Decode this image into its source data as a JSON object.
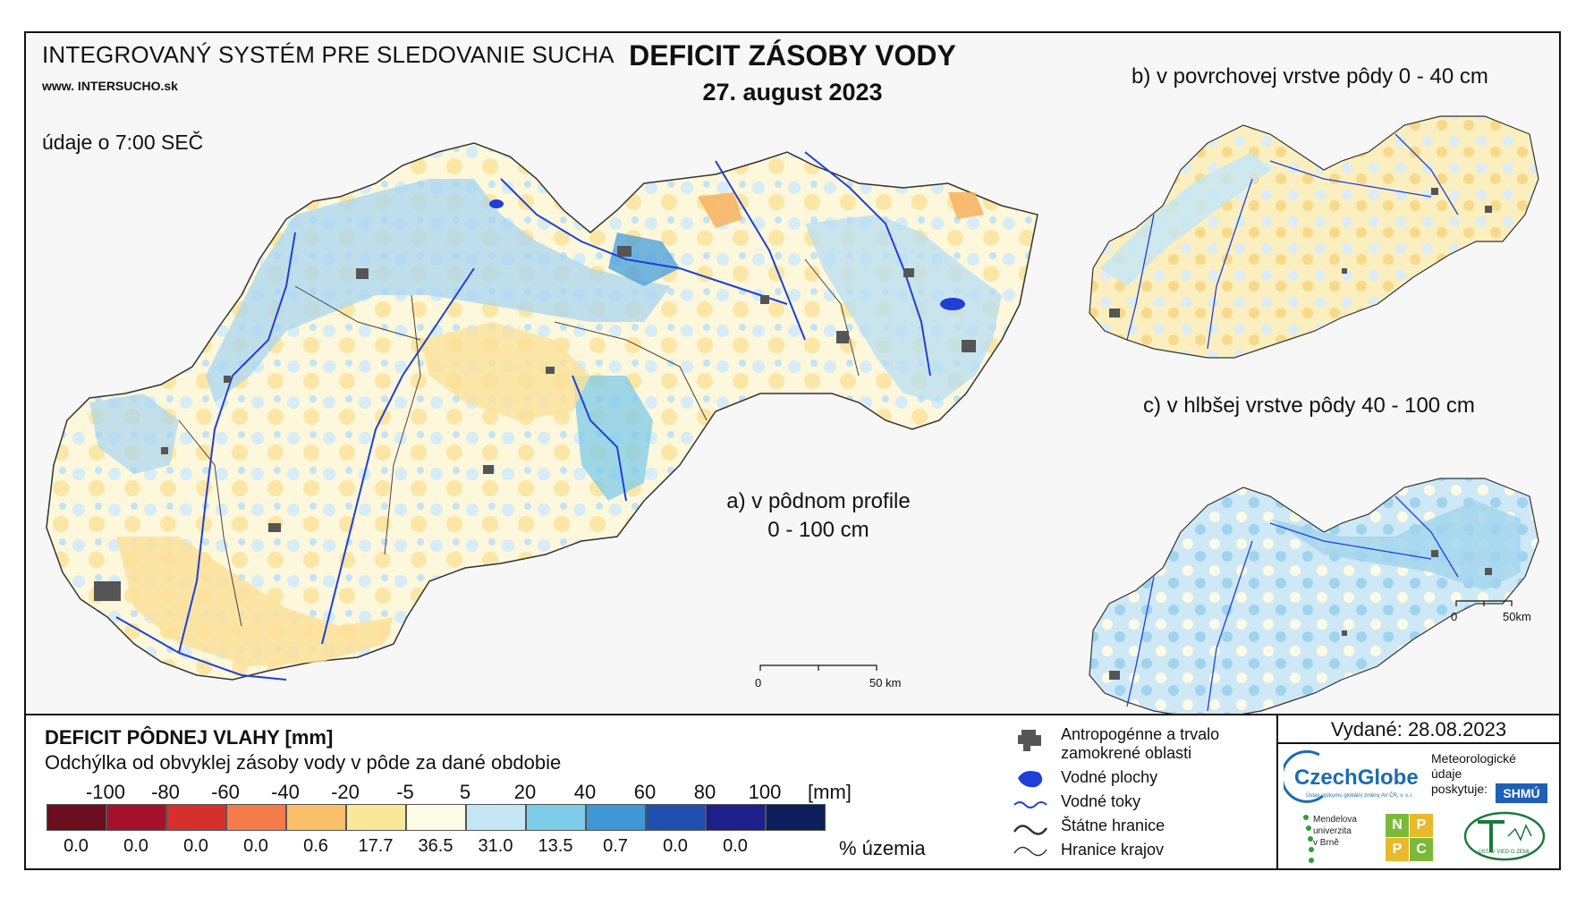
{
  "header": {
    "system_title": "INTEGROVANÝ SYSTÉM PRE SLEDOVANIE SUCHA",
    "website": "www. INTERSUCHO.sk",
    "time_note": "údaje o 7:00 SEČ",
    "title": "DEFICIT ZÁSOBY VODY",
    "date": "27. august 2023"
  },
  "maps": {
    "a_line1": "a) v pôdnom profile",
    "a_line2": "0 - 100 cm",
    "b": "b) v povrchovej vrstve pôdy 0 - 40 cm",
    "c": "c) v hlbšej vrstve pôdy 40 - 100 cm",
    "scale_main_zero": "0",
    "scale_main_end": "50 km",
    "scale_small_zero": "0",
    "scale_small_end": "50km"
  },
  "legend": {
    "title": "DEFICIT PÔDNEJ VLAHY [mm]",
    "subtitle": "Odchýlka od obvyklej zásoby vody v pôde za dané obdobie",
    "unit": "[mm]",
    "pct_unit": "% územia",
    "breaks": [
      "-100",
      "-80",
      "-60",
      "-40",
      "-20",
      "-5",
      "5",
      "20",
      "40",
      "60",
      "80",
      "100"
    ],
    "classes": [
      {
        "color": "#6b0f1e",
        "pct": "0.0"
      },
      {
        "color": "#a6122a",
        "pct": "0.0"
      },
      {
        "color": "#d6302d",
        "pct": "0.0"
      },
      {
        "color": "#f47c4a",
        "pct": "0.0"
      },
      {
        "color": "#fcc06a",
        "pct": "0.6"
      },
      {
        "color": "#fbe79a",
        "pct": "17.7"
      },
      {
        "color": "#fefce6",
        "pct": "36.5"
      },
      {
        "color": "#c4e6f5",
        "pct": "31.0"
      },
      {
        "color": "#7ecbea",
        "pct": "13.5"
      },
      {
        "color": "#3f97d6",
        "pct": "0.7"
      },
      {
        "color": "#1f4fae",
        "pct": "0.0"
      },
      {
        "color": "#1d1f8a",
        "pct": "0.0"
      },
      {
        "color": "#0d1f5a",
        "pct": ""
      }
    ]
  },
  "symbols": {
    "urban": "Antropogénne a trvalo",
    "urban2": "zamokrené oblasti",
    "water_bodies": "Vodné plochy",
    "rivers": "Vodné toky",
    "state_border": "Štátne hranice",
    "region_border": "Hranice krajov"
  },
  "issuer": {
    "issued": "Vydané: 28.08.2023",
    "czechglobe": "CzechGlobe",
    "czechglobe_sub": "Ústav výzkumu globální změny AV ČR, v. v. i.",
    "meteo1": "Meteorologické",
    "meteo2": "údaje",
    "meteo3": "poskytuje:",
    "shmu": "SHMÚ",
    "mendel1": "Mendelova",
    "mendel2": "univerzita",
    "mendel3": "v Brně",
    "nppc": [
      "N",
      "P",
      "P",
      "C"
    ],
    "uvz": "ÚSTAV VIED O ZEMI"
  },
  "colors": {
    "river": "#1f3fd6",
    "urban": "#555555",
    "border": "#333333"
  }
}
